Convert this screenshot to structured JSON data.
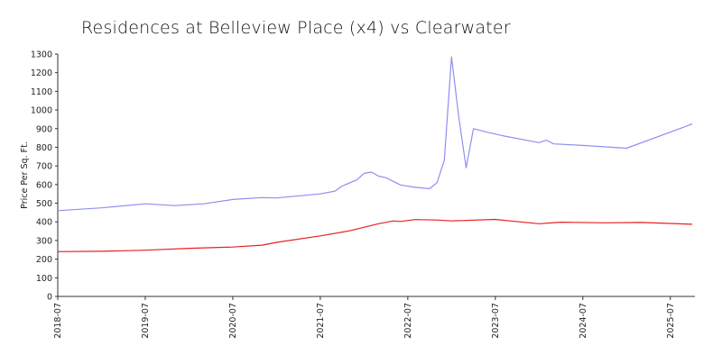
{
  "chart_data": {
    "type": "line",
    "title": "Residences at Belleview Place (x4) vs Clearwater",
    "xlabel": "",
    "ylabel": "Price Per Sq. Ft.",
    "ylim": [
      0,
      1300
    ],
    "yticks": [
      0,
      100,
      200,
      300,
      400,
      500,
      600,
      700,
      800,
      900,
      1000,
      1100,
      1200,
      1300
    ],
    "xlim": [
      "2018-07",
      "2025-10"
    ],
    "xticks": [
      "2018-07",
      "2019-07",
      "2020-07",
      "2021-07",
      "2022-07",
      "2023-07",
      "2024-07",
      "2025-07"
    ],
    "grid": false,
    "legend": "none",
    "series": [
      {
        "color": "#8f8fef",
        "points": [
          [
            "2018-07",
            460
          ],
          [
            "2019-01",
            475
          ],
          [
            "2019-07",
            497
          ],
          [
            "2019-11",
            487
          ],
          [
            "2020-03",
            497
          ],
          [
            "2020-07",
            520
          ],
          [
            "2020-11",
            530
          ],
          [
            "2021-01",
            528
          ],
          [
            "2021-07",
            550
          ],
          [
            "2021-09",
            565
          ],
          [
            "2021-10",
            592
          ],
          [
            "2021-12",
            625
          ],
          [
            "2022-01",
            660
          ],
          [
            "2022-02",
            667
          ],
          [
            "2022-03",
            645
          ],
          [
            "2022-04",
            637
          ],
          [
            "2022-06",
            598
          ],
          [
            "2022-08",
            585
          ],
          [
            "2022-10",
            578
          ],
          [
            "2022-11",
            610
          ],
          [
            "2022-12",
            730
          ],
          [
            "2023-01",
            1285
          ],
          [
            "2023-02",
            960
          ],
          [
            "2023-03",
            690
          ],
          [
            "2023-04",
            900
          ],
          [
            "2023-06",
            880
          ],
          [
            "2023-08",
            862
          ],
          [
            "2024-01",
            825
          ],
          [
            "2024-02",
            838
          ],
          [
            "2024-03",
            818
          ],
          [
            "2024-07",
            810
          ],
          [
            "2025-01",
            795
          ],
          [
            "2025-10",
            925
          ]
        ]
      },
      {
        "color": "#e82020",
        "points": [
          [
            "2018-07",
            240
          ],
          [
            "2019-01",
            242
          ],
          [
            "2019-07",
            248
          ],
          [
            "2020-01",
            258
          ],
          [
            "2020-07",
            265
          ],
          [
            "2020-11",
            275
          ],
          [
            "2021-01",
            290
          ],
          [
            "2021-07",
            325
          ],
          [
            "2021-11",
            352
          ],
          [
            "2022-03",
            390
          ],
          [
            "2022-05",
            405
          ],
          [
            "2022-06",
            402
          ],
          [
            "2022-08",
            412
          ],
          [
            "2022-11",
            410
          ],
          [
            "2023-01",
            405
          ],
          [
            "2023-07",
            413
          ],
          [
            "2023-09",
            405
          ],
          [
            "2024-01",
            390
          ],
          [
            "2024-04",
            398
          ],
          [
            "2024-10",
            395
          ],
          [
            "2025-03",
            397
          ],
          [
            "2025-10",
            387
          ]
        ]
      }
    ]
  }
}
